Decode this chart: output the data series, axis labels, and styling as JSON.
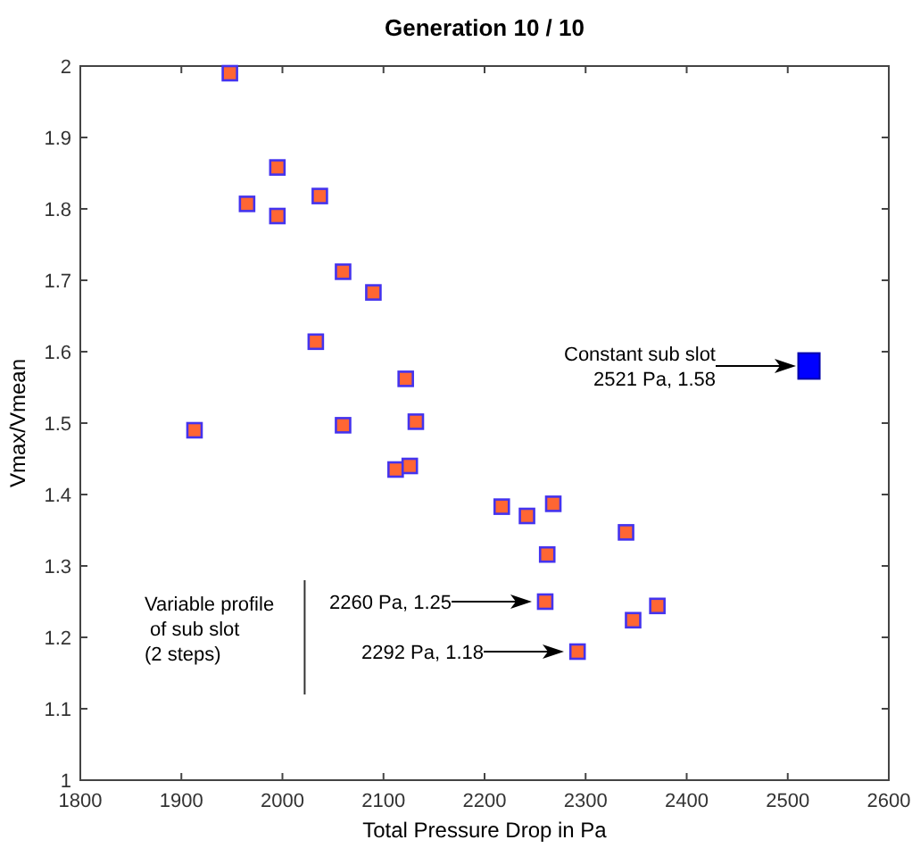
{
  "chart_data": {
    "type": "scatter",
    "title": "Generation 10 / 10",
    "xlabel": "Total Pressure Drop in Pa",
    "ylabel": "Vmax/Vmean",
    "marker": "square",
    "grid": false,
    "xlim": [
      1800,
      2600
    ],
    "xticks": [
      1800,
      1900,
      2000,
      2100,
      2200,
      2300,
      2400,
      2500,
      2600
    ],
    "ylim": [
      1,
      2
    ],
    "yticks": [
      1,
      1.1,
      1.2,
      1.3,
      1.4,
      1.5,
      1.6,
      1.7,
      1.8,
      1.9,
      2
    ],
    "series": [
      {
        "color": "#ff6633",
        "x": [
          1948,
          1995,
          1965,
          2037,
          1995,
          2060,
          2090,
          2033,
          2122,
          2132,
          1913,
          2060,
          2112,
          2126,
          2217,
          2242,
          2268,
          2340,
          2262,
          2260,
          2371,
          2347,
          2292
        ],
        "values": [
          1.99,
          1.858,
          1.807,
          1.818,
          1.79,
          1.712,
          1.683,
          1.614,
          1.562,
          1.502,
          1.49,
          1.497,
          1.435,
          1.44,
          1.383,
          1.37,
          1.387,
          1.347,
          1.316,
          1.25,
          1.244,
          1.224,
          1.18
        ]
      },
      {
        "color": "#0000ff",
        "x": [
          2521
        ],
        "values": [
          1.58
        ]
      }
    ],
    "annotations": [
      "Constant sub slot\n2521 Pa, 1.58",
      "2260 Pa, 1.25",
      "2292 Pa, 1.18",
      "Variable profile\n of sub slot\n(2 steps)"
    ]
  }
}
